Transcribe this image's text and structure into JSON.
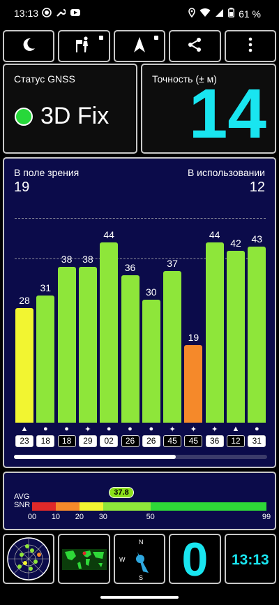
{
  "status_bar": {
    "time": "13:13",
    "battery_percent": "61 %",
    "left_icons": [
      "record-icon",
      "wrench-icon",
      "youtube-icon"
    ],
    "right_icons": [
      "location-icon",
      "wifi-icon",
      "signal-icon",
      "battery-icon"
    ]
  },
  "toolbar": {
    "buttons": [
      "night-mode-icon",
      "pedestrian-nav-icon",
      "compass-arrow-icon",
      "share-icon",
      "more-menu-icon"
    ]
  },
  "gnss_status": {
    "label": "Статус GNSS",
    "fix": "3D Fix",
    "fix_color": "#27d83a"
  },
  "accuracy": {
    "label": "Точность (± м)",
    "value": "14",
    "color": "#19e5f0"
  },
  "sky": {
    "in_view_label": "В поле зрения",
    "in_view_value": "19",
    "in_use_label": "В использовании",
    "in_use_value": "12",
    "scroll_position": 0.64
  },
  "chart_data": {
    "type": "bar",
    "categories": [
      "23",
      "18",
      "18",
      "29",
      "02",
      "26",
      "26",
      "45",
      "45",
      "36",
      "12",
      "31"
    ],
    "values": [
      28,
      31,
      38,
      38,
      44,
      36,
      30,
      37,
      19,
      44,
      42,
      43
    ],
    "value_labels": [
      "28",
      "31",
      "38",
      "38",
      "44",
      "36",
      "30",
      "37",
      "19",
      "44",
      "42",
      "43"
    ],
    "markers": [
      "▲",
      "●",
      "●",
      "✦",
      "●",
      "●",
      "●",
      "✦",
      "✦",
      "✦",
      "▲",
      "●"
    ],
    "prn_style": [
      "light",
      "light",
      "dark",
      "light",
      "light",
      "dark",
      "light",
      "dark",
      "dark",
      "light",
      "dark",
      "light"
    ],
    "colors": [
      "#f2f531",
      "#8ee63a",
      "#8ee63a",
      "#8ee63a",
      "#8ee63a",
      "#8ee63a",
      "#8ee63a",
      "#8ee63a",
      "#f5892a",
      "#8ee63a",
      "#8ee63a",
      "#8ee63a"
    ],
    "ylim": [
      0,
      60
    ],
    "gridlines": [
      40,
      50
    ]
  },
  "snr": {
    "avg_label": "AVG",
    "snr_label": "SNR",
    "average": "37.8",
    "average_value": 37.8,
    "ticks": [
      "00",
      "10",
      "20",
      "30",
      "50",
      "99"
    ],
    "tick_values": [
      0,
      10,
      20,
      30,
      50,
      99
    ],
    "segments": [
      {
        "from": 0,
        "to": 10,
        "color": "#e02929"
      },
      {
        "from": 10,
        "to": 20,
        "color": "#f5892a"
      },
      {
        "from": 20,
        "to": 30,
        "color": "#f2f531"
      },
      {
        "from": 30,
        "to": 50,
        "color": "#8ee63a"
      },
      {
        "from": 50,
        "to": 99,
        "color": "#2ed838"
      }
    ]
  },
  "bottom": {
    "radar_icon": "sky-radar-icon",
    "map_icon": "world-map-icon",
    "compass_icon": "compass-icon",
    "compass_n": "N",
    "compass_w": "W",
    "compass_s": "S",
    "counter": "0",
    "clock": "13:13"
  }
}
